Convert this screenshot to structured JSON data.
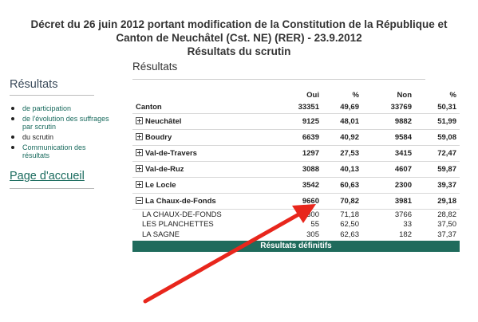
{
  "header": {
    "title_line1": "Décret du 26 juin 2012 portant modification de la Constitution de la République et",
    "title_line2": "Canton de Neuchâtel (Cst. NE) (RER) - 23.9.2012",
    "title_line3": "Résultats du scrutin"
  },
  "sidebar": {
    "heading": "Résultats",
    "items": [
      {
        "label": "de participation"
      },
      {
        "label": "de l'évolution des suffrages par scrutin"
      },
      {
        "label": "du scrutin"
      },
      {
        "label": "Communication des résultats"
      }
    ],
    "home_link": "Page d'accueil"
  },
  "main": {
    "heading": "Résultats",
    "columns": [
      "Oui",
      "%",
      "Non",
      "%"
    ],
    "canton": {
      "name": "Canton",
      "oui": "33351",
      "oui_pct": "49,69",
      "non": "33769",
      "non_pct": "50,31"
    },
    "districts": [
      {
        "name": "Neuchâtel",
        "oui": "9125",
        "oui_pct": "48,01",
        "non": "9882",
        "non_pct": "51,99"
      },
      {
        "name": "Boudry",
        "oui": "6639",
        "oui_pct": "40,92",
        "non": "9584",
        "non_pct": "59,08"
      },
      {
        "name": "Val-de-Travers",
        "oui": "1297",
        "oui_pct": "27,53",
        "non": "3415",
        "non_pct": "72,47"
      },
      {
        "name": "Val-de-Ruz",
        "oui": "3088",
        "oui_pct": "40,13",
        "non": "4607",
        "non_pct": "59,87"
      },
      {
        "name": "Le Locle",
        "oui": "3542",
        "oui_pct": "60,63",
        "non": "2300",
        "non_pct": "39,37"
      },
      {
        "name": "La Chaux-de-Fonds",
        "oui": "9660",
        "oui_pct": "70,82",
        "non": "3981",
        "non_pct": "29,18"
      }
    ],
    "communes": [
      {
        "name": "LA CHAUX-DE-FONDS",
        "oui": "9300",
        "oui_pct": "71,18",
        "non": "3766",
        "non_pct": "28,82"
      },
      {
        "name": "LES PLANCHETTES",
        "oui": "55",
        "oui_pct": "62,50",
        "non": "33",
        "non_pct": "37,50"
      },
      {
        "name": "LA SAGNE",
        "oui": "305",
        "oui_pct": "62,63",
        "non": "182",
        "non_pct": "37,37"
      }
    ],
    "footer_label": "Résultats définitifs"
  },
  "colors": {
    "accent": "#1f6b5c",
    "link": "#1a6b5e",
    "arrow": "#e8261c"
  }
}
